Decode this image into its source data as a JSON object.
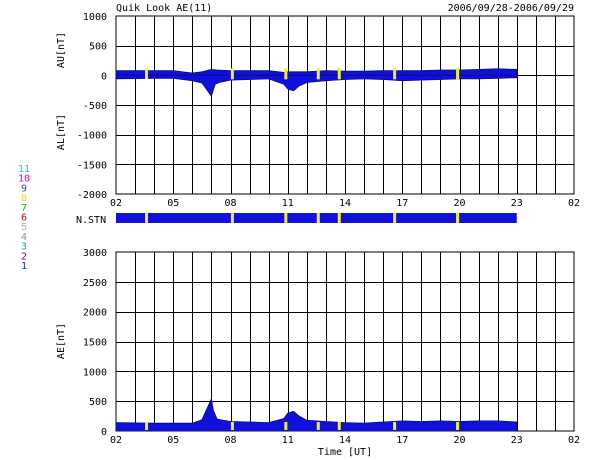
{
  "header": {
    "title": "Quik Look AE(11)",
    "date_range": "2006/09/28-2006/09/29"
  },
  "colors": {
    "data": "#1010dd",
    "marker": "#f0f030",
    "grid": "#000000",
    "axis": "#000000"
  },
  "station_legend": [
    {
      "label": "11",
      "color": "#00d8d8"
    },
    {
      "label": "10",
      "color": "#e000e0"
    },
    {
      "label": "9",
      "color": "#4040c0"
    },
    {
      "label": "8",
      "color": "#e8e800"
    },
    {
      "label": "7",
      "color": "#00c000"
    },
    {
      "label": "6",
      "color": "#e00000"
    },
    {
      "label": "5",
      "color": "#b0b0b0"
    },
    {
      "label": "4",
      "color": "#909090"
    },
    {
      "label": "3",
      "color": "#20a0a0"
    },
    {
      "label": "2",
      "color": "#8000a0"
    },
    {
      "label": "1",
      "color": "#2020d0"
    }
  ],
  "chart_data": [
    {
      "type": "area",
      "ylabel_top": "AU[nT]",
      "ylabel_bottom": "AL[nT]",
      "ylim": [
        -2000,
        1000
      ],
      "yticks": [
        "1000",
        "500",
        "0",
        "-500",
        "-1000",
        "-1500",
        "-2000"
      ],
      "xticks": [
        "02",
        "05",
        "08",
        "11",
        "14",
        "17",
        "20",
        "23",
        "02"
      ],
      "xlim_hours": [
        2,
        26
      ],
      "data_end_hour": 23,
      "series": [
        {
          "x": [
            2,
            4,
            5,
            6,
            6.5,
            7,
            7.3,
            8,
            9,
            10,
            10.8,
            11,
            11.3,
            12,
            13,
            14,
            15,
            16,
            17,
            18,
            19,
            20,
            21,
            22,
            23
          ],
          "values": [
            80,
            80,
            80,
            40,
            60,
            100,
            90,
            80,
            80,
            80,
            50,
            60,
            60,
            60,
            80,
            70,
            70,
            80,
            80,
            80,
            90,
            90,
            100,
            110,
            100
          ]
        },
        {
          "x": [
            2,
            4,
            5,
            6,
            6.5,
            7,
            7.2,
            7.4,
            8,
            9,
            10,
            10.8,
            11,
            11.3,
            11.6,
            12,
            13,
            14,
            15,
            16,
            17,
            18,
            19,
            20,
            21,
            22,
            23
          ],
          "values": [
            -60,
            -50,
            -50,
            -90,
            -130,
            -350,
            -150,
            -120,
            -80,
            -70,
            -60,
            -150,
            -230,
            -260,
            -180,
            -120,
            -90,
            -70,
            -60,
            -70,
            -90,
            -80,
            -70,
            -60,
            -60,
            -50,
            -40
          ]
        }
      ],
      "station_changes": [
        3.6,
        8.1,
        10.9,
        12.6,
        13.7,
        16.6,
        19.9
      ]
    },
    {
      "type": "bar",
      "label": "N.STN",
      "xlim_hours": [
        2,
        26
      ],
      "data_end_hour": 23,
      "station_changes": [
        3.6,
        8.1,
        10.9,
        12.6,
        13.7,
        16.6,
        19.9
      ]
    },
    {
      "type": "area",
      "ylabel": "AE[nT]",
      "ylim": [
        0,
        3000
      ],
      "yticks": [
        "3000",
        "2500",
        "2000",
        "1500",
        "1000",
        "500",
        "0"
      ],
      "xticks": [
        "02",
        "05",
        "08",
        "11",
        "14",
        "17",
        "20",
        "23",
        "02"
      ],
      "xlabel": "Time [UT]",
      "xlim_hours": [
        2,
        26
      ],
      "data_end_hour": 23,
      "series": [
        {
          "x": [
            2,
            4,
            5,
            6,
            6.5,
            7,
            7.1,
            7.3,
            8,
            9,
            10,
            10.8,
            11,
            11.3,
            11.6,
            12,
            13,
            14,
            15,
            16,
            17,
            18,
            19,
            20,
            21,
            22,
            23
          ],
          "values": [
            140,
            130,
            130,
            130,
            190,
            540,
            350,
            200,
            160,
            150,
            140,
            210,
            300,
            330,
            250,
            180,
            160,
            140,
            130,
            150,
            170,
            160,
            170,
            160,
            170,
            170,
            150
          ]
        }
      ],
      "station_changes": [
        3.6,
        8.1,
        10.9,
        12.6,
        13.7,
        16.6,
        19.9
      ]
    }
  ]
}
